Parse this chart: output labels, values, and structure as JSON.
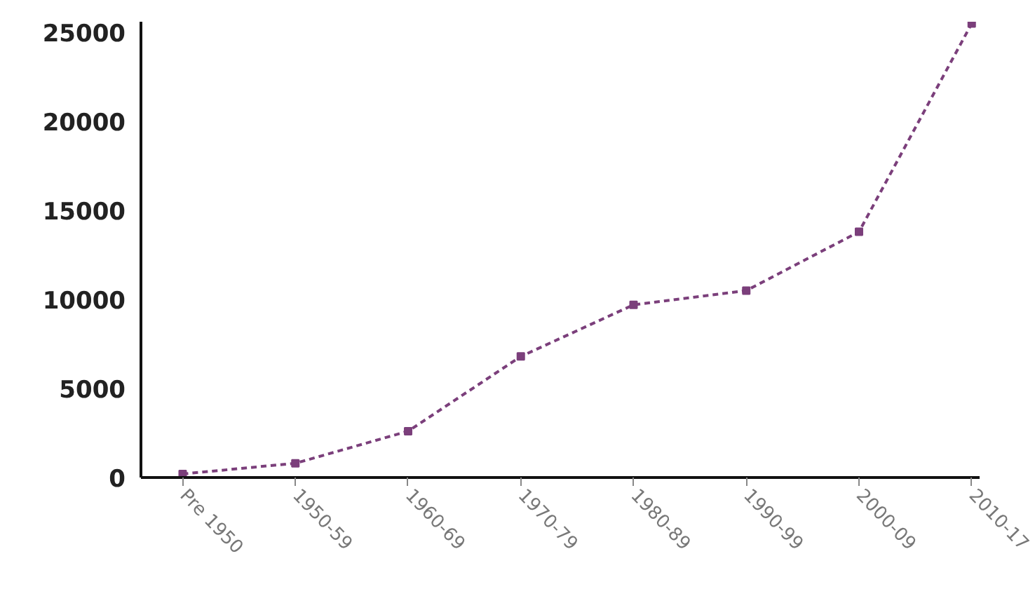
{
  "chart_data": {
    "type": "line",
    "categories": [
      "Pre 1950",
      "1950-59",
      "1960-69",
      "1970-79",
      "1980-89",
      "1990-99",
      "2000-09",
      "2010-17"
    ],
    "series": [
      {
        "color": "#7b3f7b",
        "values": [
          200,
          800,
          2600,
          6800,
          9700,
          10500,
          13800,
          25500
        ]
      }
    ],
    "ylim": [
      0,
      25600
    ],
    "yticks": [
      0,
      5000,
      10000,
      15000,
      20000,
      25000
    ],
    "grid": false,
    "marker": "square",
    "line_style": "dashed"
  }
}
